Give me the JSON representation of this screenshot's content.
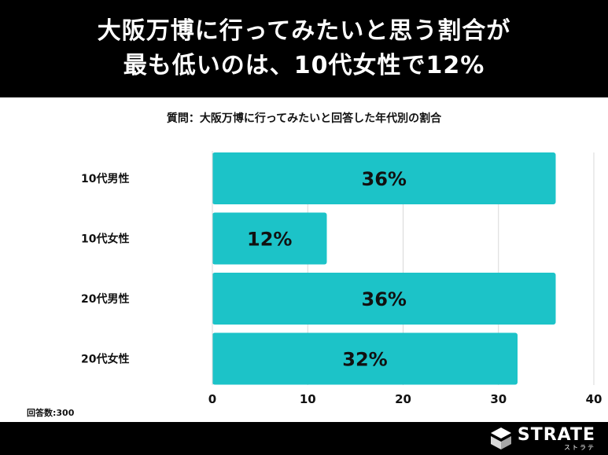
{
  "header": {
    "line1": "大阪万博に行ってみたいと思う割合が",
    "line2": "最も低いのは、10代女性で12%"
  },
  "question": "質問：大阪万博に行ってみたいと回答した年代別の割合",
  "footnote": "回答数:300",
  "logo": {
    "name": "STRATE",
    "sub": "ストラテ"
  },
  "colors": {
    "bar": "#1cc3c8",
    "header_bg": "#000000",
    "grid": "#d9d9d9"
  },
  "chart_data": {
    "type": "bar",
    "orientation": "horizontal",
    "categories": [
      "10代男性",
      "10代女性",
      "20代男性",
      "20代女性"
    ],
    "values": [
      36,
      12,
      36,
      32
    ],
    "value_labels": [
      "36%",
      "12%",
      "36%",
      "32%"
    ],
    "xticks": [
      "0",
      "10",
      "20",
      "30",
      "40"
    ],
    "xlim": [
      0,
      40
    ],
    "grid": "vertical",
    "title": "",
    "xlabel": "",
    "ylabel": ""
  }
}
